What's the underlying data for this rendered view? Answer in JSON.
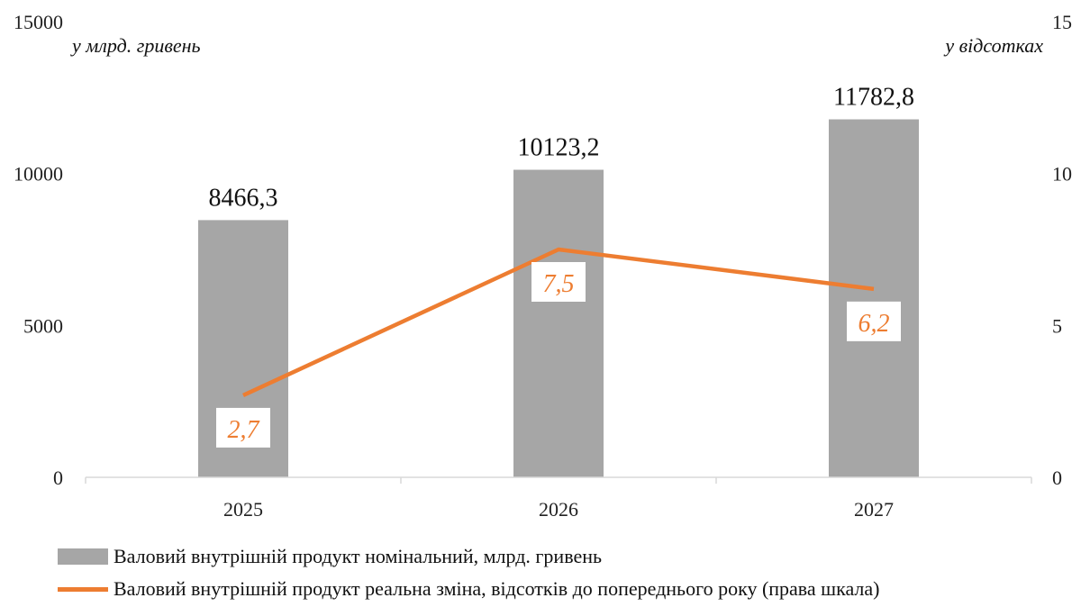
{
  "chart_data": {
    "type": "bar",
    "categories": [
      "2025",
      "2026",
      "2027"
    ],
    "series": [
      {
        "name": "Валовий внутрішній продукт номінальний, млрд. гривень",
        "type": "bar",
        "axis": "left",
        "values": [
          8466.3,
          10123.2,
          11782.8
        ],
        "value_labels": [
          "8466,3",
          "10123,2",
          "11782,8"
        ],
        "color": "#a6a6a6"
      },
      {
        "name": "Валовий внутрішній продукт реальна зміна, відсотків до попереднього року (права шкала)",
        "type": "line",
        "axis": "right",
        "values": [
          2.7,
          7.5,
          6.2
        ],
        "value_labels": [
          "2,7",
          "7,5",
          "6,2"
        ],
        "color": "#ed7d31"
      }
    ],
    "left_axis": {
      "unit": "у млрд. гривень",
      "ylim": [
        0,
        15000
      ],
      "ticks": [
        "0",
        "5000",
        "10000",
        "15000"
      ]
    },
    "right_axis": {
      "unit": "у відсотках",
      "ylim": [
        0,
        15
      ],
      "ticks": [
        "0",
        "5",
        "10",
        "15"
      ]
    },
    "grid": false,
    "legend_position": "bottom-left"
  }
}
